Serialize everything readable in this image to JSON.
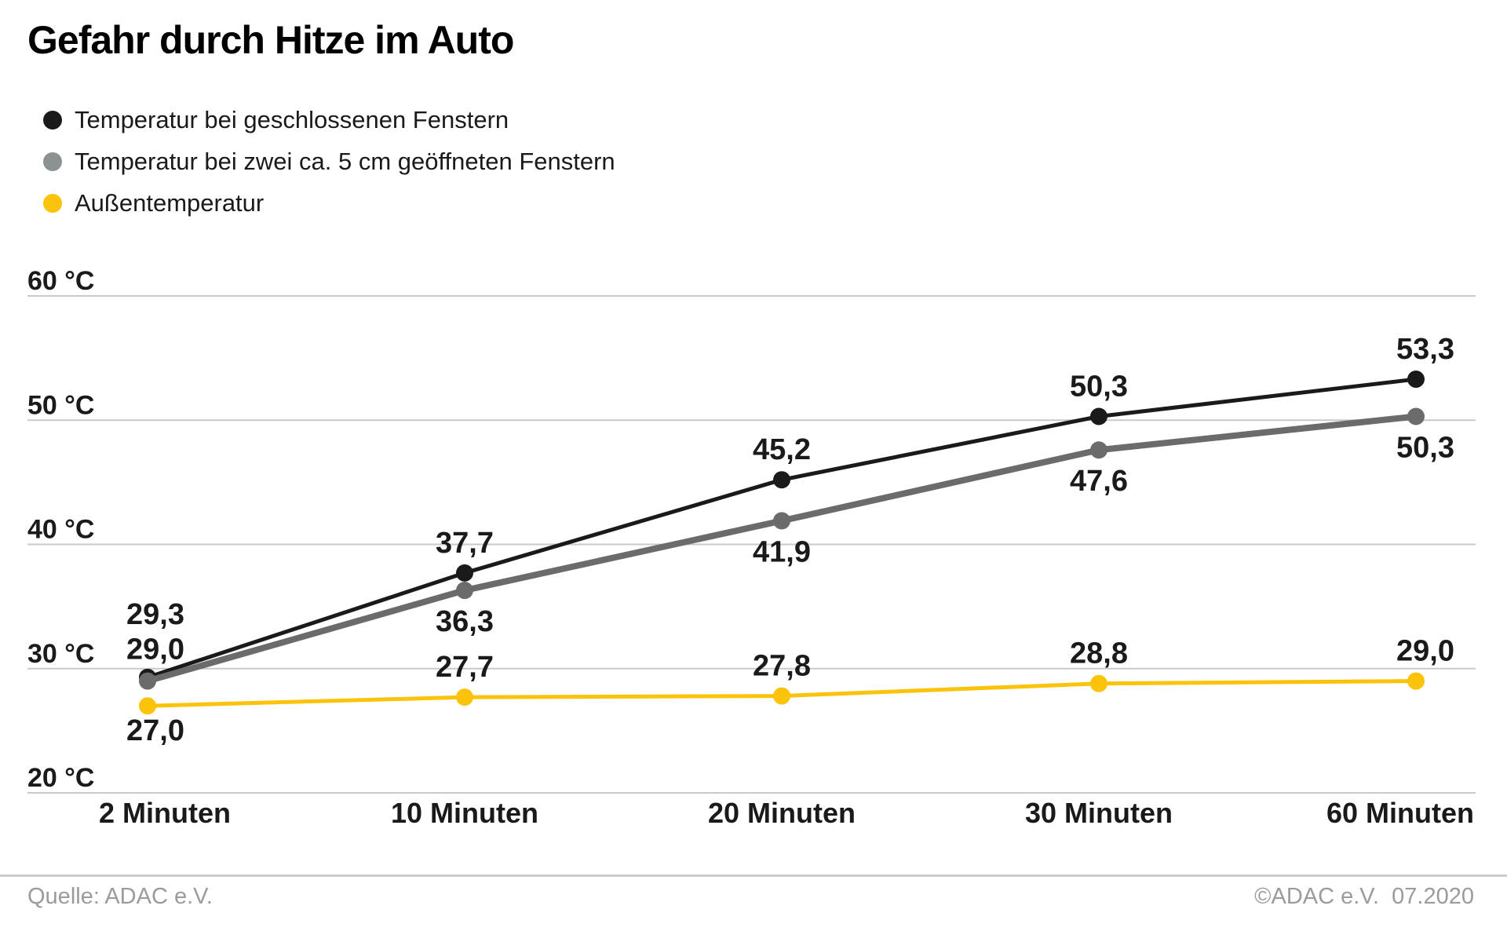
{
  "title": "Gefahr durch Hitze im Auto",
  "legend": [
    {
      "label": "Temperatur bei geschlossenen Fenstern",
      "color": "#1a1a1a"
    },
    {
      "label": "Temperatur bei zwei ca. 5 cm geöffneten Fenstern",
      "color": "#8a9292"
    },
    {
      "label": "Außentemperatur",
      "color": "#fcc30b"
    }
  ],
  "chart_data": {
    "type": "line",
    "title": "Gefahr durch Hitze im Auto",
    "categories": [
      "2 Minuten",
      "10 Minuten",
      "20 Minuten",
      "30 Minuten",
      "60 Minuten"
    ],
    "series": [
      {
        "id": "closed-windows",
        "name": "Temperatur bei geschlossenen Fenstern",
        "color": "#1a1a1a",
        "stroke_width": 5,
        "values": [
          29.3,
          37.7,
          45.2,
          50.3,
          53.3
        ],
        "labels": [
          "29,3",
          "37,7",
          "45,2",
          "50,3",
          "53,3"
        ],
        "label_pos": [
          "above-high",
          "above",
          "above",
          "above",
          "above"
        ]
      },
      {
        "id": "open-windows",
        "name": "Temperatur bei zwei ca. 5 cm geöffneten Fenstern",
        "color": "#6b6b6b",
        "stroke_width": 8,
        "values": [
          29.0,
          36.3,
          41.9,
          47.6,
          50.3
        ],
        "labels": [
          "29,0",
          "36,3",
          "41,9",
          "47,6",
          "50,3"
        ],
        "label_pos": [
          "above-near",
          "below",
          "below",
          "below",
          "below"
        ]
      },
      {
        "id": "outside-temperature",
        "name": "Außentemperatur",
        "color": "#fcc30b",
        "stroke_width": 5,
        "values": [
          27.0,
          27.7,
          27.8,
          28.8,
          29.0
        ],
        "labels": [
          "27,0",
          "27,7",
          "27,8",
          "28,8",
          "29,0"
        ],
        "label_pos": [
          "below-near",
          "above",
          "above",
          "above",
          "above"
        ]
      }
    ],
    "ylim": [
      20,
      60
    ],
    "yticks": [
      {
        "value": 60,
        "label": "60 °C"
      },
      {
        "value": 50,
        "label": "50 °C"
      },
      {
        "value": 40,
        "label": "40 °C"
      },
      {
        "value": 30,
        "label": "30 °C"
      },
      {
        "value": 20,
        "label": "20 °C"
      }
    ],
    "xlabel": "",
    "ylabel": "°C",
    "grid": true,
    "legend_position": "top-left",
    "grid_color": "#c9c9c9"
  },
  "footer": {
    "source": "Quelle: ADAC e.V.",
    "copyright": "©ADAC e.V.  07.2020"
  }
}
